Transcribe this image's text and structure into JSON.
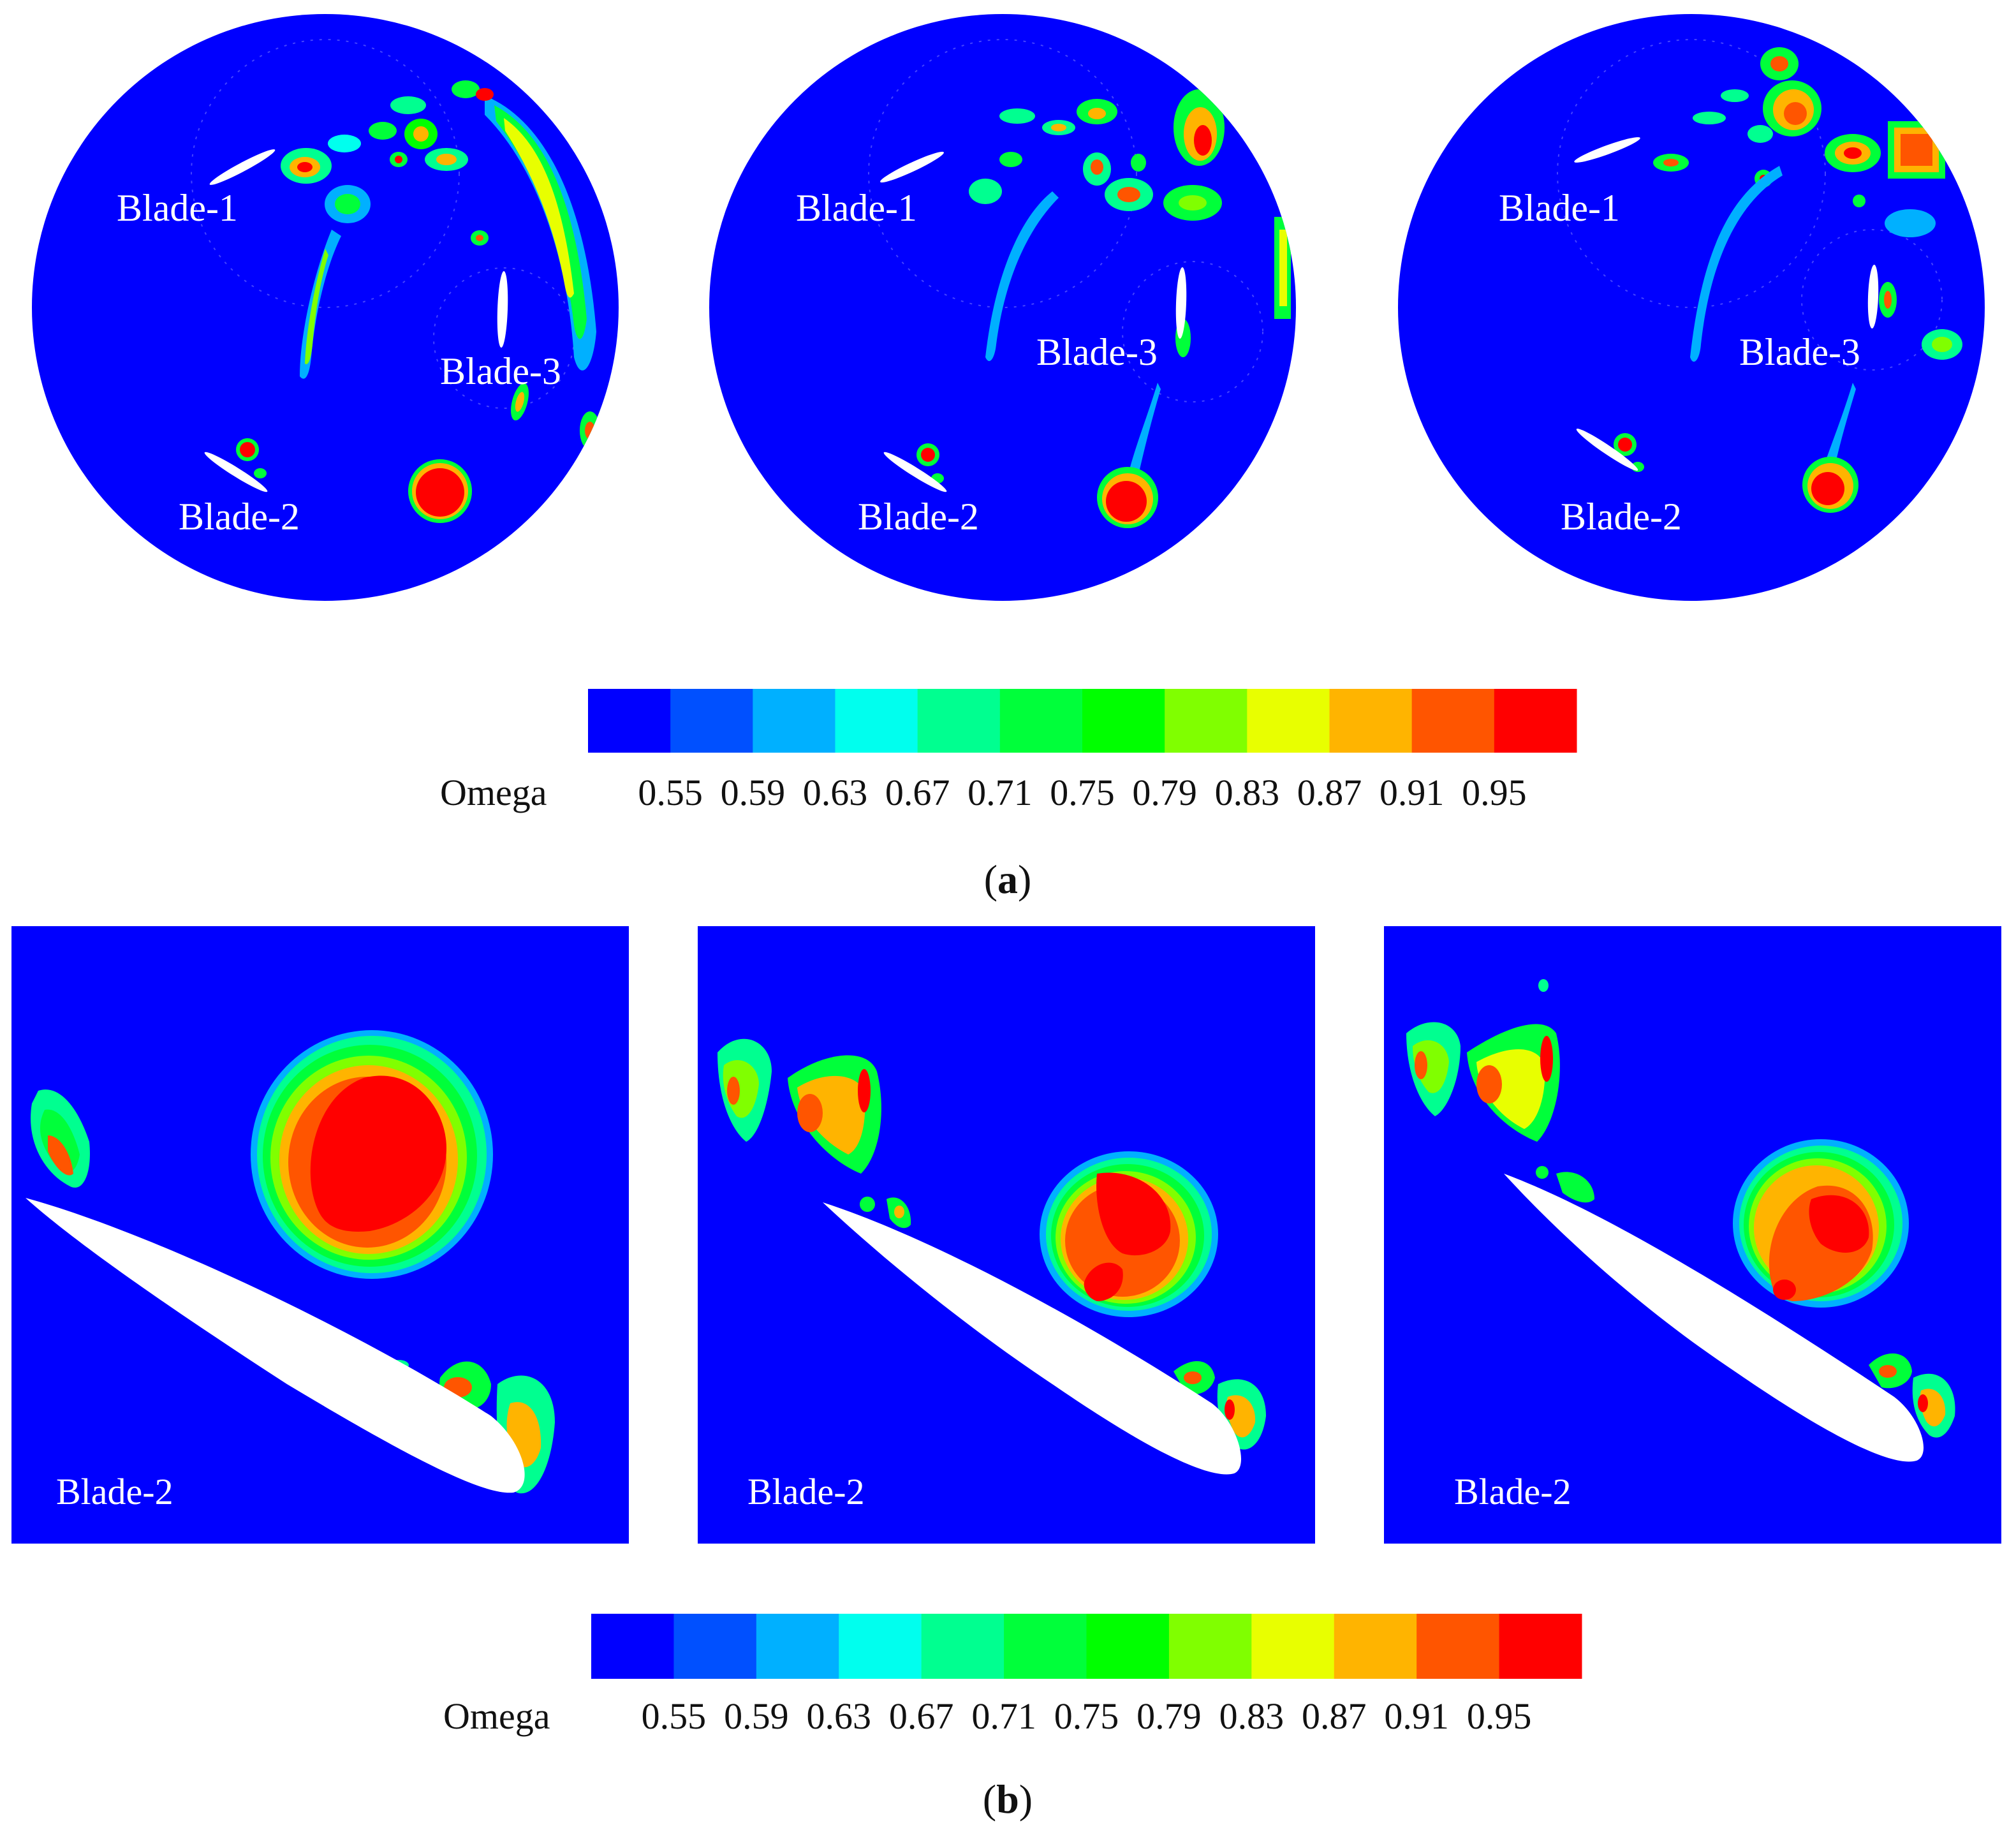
{
  "colors": {
    "background": "#0000ff",
    "airfoil": "#ffffff",
    "scale": [
      "#0000ff",
      "#0050ff",
      "#00b0ff",
      "#00ffee",
      "#00ff90",
      "#00ff3a",
      "#00ff00",
      "#80ff00",
      "#e8ff00",
      "#ffb400",
      "#ff5500",
      "#ff0000"
    ]
  },
  "legend": {
    "variable": "Omega",
    "ticks": [
      "0.55",
      "0.59",
      "0.63",
      "0.67",
      "0.71",
      "0.75",
      "0.79",
      "0.83",
      "0.87",
      "0.91",
      "0.95"
    ]
  },
  "panel_a": {
    "caption_open": "(",
    "caption_letter": "a",
    "caption_close": ")",
    "views": [
      {
        "labels": {
          "blade1": "Blade-1",
          "blade2": "Blade-2",
          "blade3": "Blade-3"
        }
      },
      {
        "labels": {
          "blade1": "Blade-1",
          "blade2": "Blade-2",
          "blade3": "Blade-3"
        }
      },
      {
        "labels": {
          "blade1": "Blade-1",
          "blade2": "Blade-2",
          "blade3": "Blade-3"
        }
      }
    ]
  },
  "panel_b": {
    "caption_open": "(",
    "caption_letter": "b",
    "caption_close": ")",
    "views": [
      {
        "label": "Blade-2"
      },
      {
        "label": "Blade-2"
      },
      {
        "label": "Blade-2"
      }
    ]
  }
}
